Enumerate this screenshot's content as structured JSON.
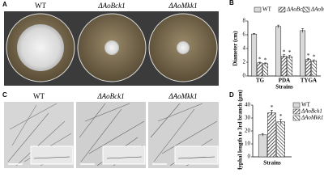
{
  "panel_a": {
    "letter": "A",
    "labels": [
      "WT",
      "ΔAoBck1",
      "ΔAoMkk1"
    ]
  },
  "panel_c": {
    "letter": "C",
    "labels": [
      "WT",
      "ΔAoBck1",
      "ΔAoMkk1"
    ]
  },
  "chart_data": [
    {
      "type": "bar",
      "letter": "B",
      "ylabel": "Diameter (cm)",
      "xlabel": "Strains",
      "categories": [
        "TG",
        "PDA",
        "TYGA"
      ],
      "series": [
        {
          "name": "WT",
          "color": "#d9d9d9",
          "hatch": "none",
          "values": [
            6.1,
            7.2,
            6.6
          ],
          "errors": [
            0.1,
            0.2,
            0.3
          ]
        },
        {
          "name": "ΔAoBck1",
          "color": "#222222",
          "hatch": "diagonal",
          "values": [
            1.9,
            2.9,
            2.4
          ],
          "errors": [
            0.1,
            0.2,
            0.15
          ],
          "marks": [
            "*",
            "*",
            "*"
          ]
        },
        {
          "name": "ΔAoMkk1",
          "color": "#222222",
          "hatch": "back-diagonal",
          "values": [
            1.8,
            2.8,
            2.2
          ],
          "errors": [
            0.1,
            0.2,
            0.15
          ],
          "marks": [
            "*",
            "*",
            "*"
          ]
        }
      ],
      "ylim": [
        0,
        8
      ],
      "yticks": [
        0,
        2,
        4,
        6,
        8
      ],
      "legend": "top"
    },
    {
      "type": "bar",
      "letter": "D",
      "ylabel": "Hyphal length to 3rd branch (μm)",
      "xlabel": "Strains",
      "series": [
        {
          "name": "WT",
          "color": "#d9d9d9",
          "hatch": "none",
          "values": [
            17
          ],
          "errors": [
            1
          ]
        },
        {
          "name": "ΔAoBck1",
          "color": "#222222",
          "hatch": "diagonal",
          "values": [
            34
          ],
          "errors": [
            2
          ],
          "marks": [
            "*"
          ]
        },
        {
          "name": "ΔAoMkk1",
          "color": "#222222",
          "hatch": "back-diagonal",
          "values": [
            27
          ],
          "errors": [
            2
          ],
          "marks": [
            "*"
          ]
        }
      ],
      "ylim": [
        0,
        40
      ],
      "yticks": [
        0,
        10,
        20,
        30,
        40
      ],
      "legend": "upper right"
    }
  ]
}
